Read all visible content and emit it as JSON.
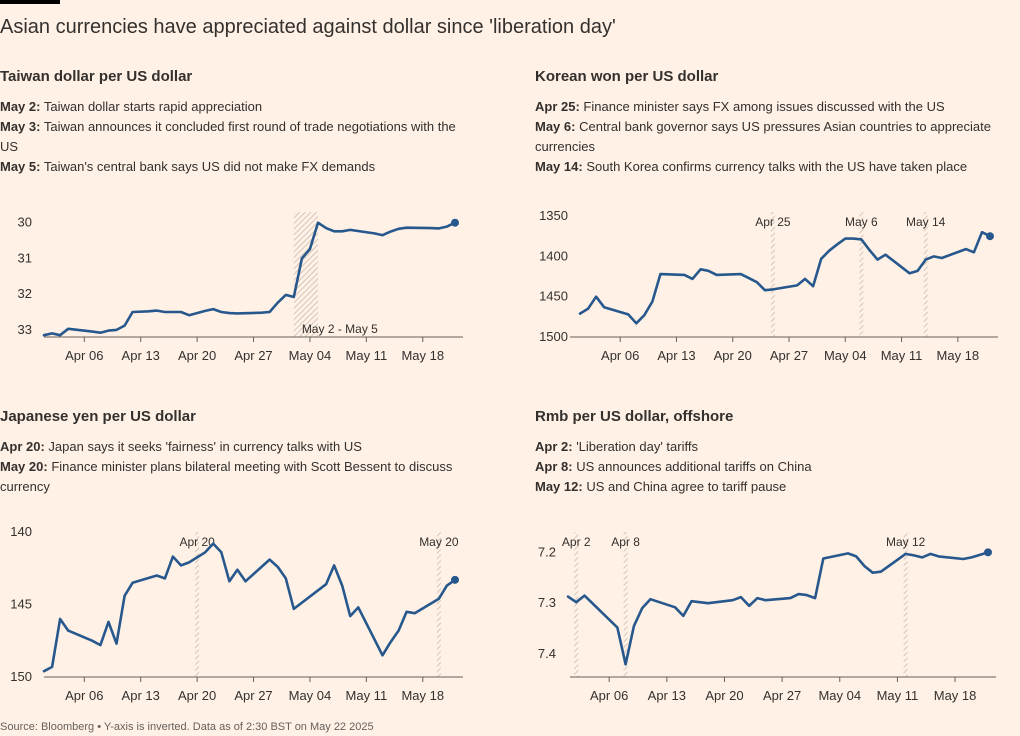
{
  "title": "Asian currencies have appreciated against dollar since 'liberation day'",
  "source": "Source: Bloomberg • Y-axis is inverted. Data as of 2:30 BST on May 22 2025",
  "colors": {
    "line": "#27588d",
    "background": "#fff1e5",
    "text": "#33302e",
    "axis": "#66605c",
    "band": "#c8bcb0"
  },
  "chart_data": [
    {
      "type": "line",
      "title": "Taiwan dollar per US dollar",
      "notes": [
        {
          "date": "May 2:",
          "text": "Taiwan dollar starts rapid appreciation"
        },
        {
          "date": "May 3:",
          "text": "Taiwan announces it concluded first round of trade negotiations with the US"
        },
        {
          "date": "May 5:",
          "text": "Taiwan's central bank says US did not make FX demands"
        }
      ],
      "x_start": "2025-04-01",
      "x_end": "2025-05-22",
      "ylim": [
        33.2,
        29.7
      ],
      "y_inverted": true,
      "yticks": [
        30,
        31,
        32,
        33
      ],
      "xticks": [
        "Apr 06",
        "Apr 13",
        "Apr 20",
        "Apr 27",
        "May 04",
        "May 11",
        "May 18"
      ],
      "xtick_dates": [
        "2025-04-06",
        "2025-04-13",
        "2025-04-20",
        "2025-04-27",
        "2025-05-04",
        "2025-05-11",
        "2025-05-18"
      ],
      "annotations": [
        {
          "label": "May 2 - May 5",
          "start": "2025-05-02",
          "end": "2025-05-05",
          "label_pos": "bottom"
        }
      ],
      "points": [
        [
          "2025-04-01",
          33.15
        ],
        [
          "2025-04-02",
          33.1
        ],
        [
          "2025-04-03",
          33.15
        ],
        [
          "2025-04-04",
          32.97
        ],
        [
          "2025-04-07",
          33.05
        ],
        [
          "2025-04-08",
          33.08
        ],
        [
          "2025-04-09",
          33.02
        ],
        [
          "2025-04-10",
          33.0
        ],
        [
          "2025-04-11",
          32.88
        ],
        [
          "2025-04-12",
          32.5
        ],
        [
          "2025-04-14",
          32.48
        ],
        [
          "2025-04-15",
          32.46
        ],
        [
          "2025-04-16",
          32.5
        ],
        [
          "2025-04-17",
          32.5
        ],
        [
          "2025-04-18",
          32.5
        ],
        [
          "2025-04-19",
          32.59
        ],
        [
          "2025-04-21",
          32.47
        ],
        [
          "2025-04-22",
          32.42
        ],
        [
          "2025-04-23",
          32.5
        ],
        [
          "2025-04-24",
          32.53
        ],
        [
          "2025-04-25",
          32.54
        ],
        [
          "2025-04-28",
          32.52
        ],
        [
          "2025-04-29",
          32.5
        ],
        [
          "2025-04-30",
          32.24
        ],
        [
          "2025-05-01",
          32.02
        ],
        [
          "2025-05-02",
          32.08
        ],
        [
          "2025-05-03",
          31.0
        ],
        [
          "2025-05-04",
          30.74
        ],
        [
          "2025-05-05",
          30.0
        ],
        [
          "2025-05-06",
          30.15
        ],
        [
          "2025-05-07",
          30.24
        ],
        [
          "2025-05-08",
          30.24
        ],
        [
          "2025-05-09",
          30.2
        ],
        [
          "2025-05-12",
          30.3
        ],
        [
          "2025-05-13",
          30.35
        ],
        [
          "2025-05-14",
          30.25
        ],
        [
          "2025-05-15",
          30.17
        ],
        [
          "2025-05-16",
          30.14
        ],
        [
          "2025-05-19",
          30.15
        ],
        [
          "2025-05-20",
          30.16
        ],
        [
          "2025-05-21",
          30.11
        ],
        [
          "2025-05-22",
          30.0
        ]
      ]
    },
    {
      "type": "line",
      "title": "Korean won per US dollar",
      "notes": [
        {
          "date": "Apr 25:",
          "text": "Finance minister says FX among issues discussed with the US"
        },
        {
          "date": "May 6:",
          "text": "Central bank governor says US pressures Asian countries to appreciate currencies"
        },
        {
          "date": "May 14:",
          "text": "South Korea confirms currency talks with the US have taken place"
        }
      ],
      "x_start": "2025-04-01",
      "x_end": "2025-05-22",
      "ylim": [
        1500,
        1345
      ],
      "y_inverted": true,
      "yticks": [
        1350,
        1400,
        1450,
        1500
      ],
      "xticks": [
        "Apr 06",
        "Apr 13",
        "Apr 20",
        "Apr 27",
        "May 04",
        "May 11",
        "May 18"
      ],
      "xtick_dates": [
        "2025-04-06",
        "2025-04-13",
        "2025-04-20",
        "2025-04-27",
        "2025-05-04",
        "2025-05-11",
        "2025-05-18"
      ],
      "annotations": [
        {
          "label": "Apr 25",
          "start": "2025-04-25",
          "end": "2025-04-25",
          "label_pos": "top"
        },
        {
          "label": "May 6",
          "start": "2025-05-06",
          "end": "2025-05-06",
          "label_pos": "top"
        },
        {
          "label": "May 14",
          "start": "2025-05-14",
          "end": "2025-05-14",
          "label_pos": "top"
        }
      ],
      "points": [
        [
          "2025-04-01",
          1471
        ],
        [
          "2025-04-02",
          1465
        ],
        [
          "2025-04-03",
          1450
        ],
        [
          "2025-04-04",
          1463
        ],
        [
          "2025-04-07",
          1472
        ],
        [
          "2025-04-08",
          1483
        ],
        [
          "2025-04-09",
          1473
        ],
        [
          "2025-04-10",
          1456
        ],
        [
          "2025-04-11",
          1422
        ],
        [
          "2025-04-14",
          1423
        ],
        [
          "2025-04-15",
          1428
        ],
        [
          "2025-04-16",
          1416
        ],
        [
          "2025-04-17",
          1418
        ],
        [
          "2025-04-18",
          1423
        ],
        [
          "2025-04-21",
          1422
        ],
        [
          "2025-04-22",
          1427
        ],
        [
          "2025-04-23",
          1432
        ],
        [
          "2025-04-24",
          1442
        ],
        [
          "2025-04-25",
          1441
        ],
        [
          "2025-04-28",
          1436
        ],
        [
          "2025-04-29",
          1428
        ],
        [
          "2025-04-30",
          1437
        ],
        [
          "2025-05-01",
          1403
        ],
        [
          "2025-05-02",
          1393
        ],
        [
          "2025-05-03",
          1385
        ],
        [
          "2025-05-04",
          1378
        ],
        [
          "2025-05-05",
          1378
        ],
        [
          "2025-05-06",
          1379
        ],
        [
          "2025-05-07",
          1392
        ],
        [
          "2025-05-08",
          1404
        ],
        [
          "2025-05-09",
          1398
        ],
        [
          "2025-05-12",
          1421
        ],
        [
          "2025-05-13",
          1418
        ],
        [
          "2025-05-14",
          1404
        ],
        [
          "2025-05-15",
          1400
        ],
        [
          "2025-05-16",
          1402
        ],
        [
          "2025-05-19",
          1391
        ],
        [
          "2025-05-20",
          1395
        ],
        [
          "2025-05-21",
          1370
        ],
        [
          "2025-05-22",
          1375
        ]
      ]
    },
    {
      "type": "line",
      "title": "Japanese yen per US dollar",
      "notes": [
        {
          "date": "Apr 20:",
          "text": "Japan says it seeks 'fairness' in currency talks with US"
        },
        {
          "date": "May 20:",
          "text": "Finance minister plans bilateral meeting with Scott Bessent to discuss currency"
        }
      ],
      "x_start": "2025-04-01",
      "x_end": "2025-05-22",
      "ylim": [
        150,
        140
      ],
      "y_inverted": true,
      "yticks": [
        140,
        145,
        150
      ],
      "xticks": [
        "Apr 06",
        "Apr 13",
        "Apr 20",
        "Apr 27",
        "May 04",
        "May 11",
        "May 18"
      ],
      "xtick_dates": [
        "2025-04-06",
        "2025-04-13",
        "2025-04-20",
        "2025-04-27",
        "2025-05-04",
        "2025-05-11",
        "2025-05-18"
      ],
      "annotations": [
        {
          "label": "Apr 20",
          "start": "2025-04-20",
          "end": "2025-04-20",
          "label_pos": "top"
        },
        {
          "label": "May 20",
          "start": "2025-05-20",
          "end": "2025-05-20",
          "label_pos": "top"
        }
      ],
      "points": [
        [
          "2025-04-01",
          149.6
        ],
        [
          "2025-04-02",
          149.3
        ],
        [
          "2025-04-03",
          146.0
        ],
        [
          "2025-04-04",
          146.8
        ],
        [
          "2025-04-07",
          147.5
        ],
        [
          "2025-04-08",
          147.8
        ],
        [
          "2025-04-09",
          146.2
        ],
        [
          "2025-04-10",
          147.7
        ],
        [
          "2025-04-11",
          144.4
        ],
        [
          "2025-04-12",
          143.5
        ],
        [
          "2025-04-15",
          143.0
        ],
        [
          "2025-04-16",
          143.2
        ],
        [
          "2025-04-17",
          141.7
        ],
        [
          "2025-04-18",
          142.3
        ],
        [
          "2025-04-19",
          142.1
        ],
        [
          "2025-04-21",
          141.4
        ],
        [
          "2025-04-22",
          140.8
        ],
        [
          "2025-04-23",
          141.4
        ],
        [
          "2025-04-24",
          143.4
        ],
        [
          "2025-04-25",
          142.6
        ],
        [
          "2025-04-26",
          143.4
        ],
        [
          "2025-04-29",
          141.9
        ],
        [
          "2025-04-30",
          142.4
        ],
        [
          "2025-05-01",
          143.2
        ],
        [
          "2025-05-02",
          145.3
        ],
        [
          "2025-05-06",
          143.6
        ],
        [
          "2025-05-07",
          142.3
        ],
        [
          "2025-05-08",
          143.7
        ],
        [
          "2025-05-09",
          145.8
        ],
        [
          "2025-05-10",
          145.2
        ],
        [
          "2025-05-13",
          148.5
        ],
        [
          "2025-05-14",
          147.6
        ],
        [
          "2025-05-15",
          146.8
        ],
        [
          "2025-05-16",
          145.5
        ],
        [
          "2025-05-17",
          145.6
        ],
        [
          "2025-05-20",
          144.6
        ],
        [
          "2025-05-21",
          143.7
        ],
        [
          "2025-05-22",
          143.3
        ]
      ]
    },
    {
      "type": "line",
      "title": "Rmb per US dollar, offshore",
      "notes": [
        {
          "date": "Apr 2:",
          "text": "'Liberation day' tariffs"
        },
        {
          "date": "Apr 8:",
          "text": "US announces additional tariffs on China"
        },
        {
          "date": "May 12:",
          "text": "US and China agree to tariff pause"
        }
      ],
      "x_start": "2025-04-01",
      "x_end": "2025-05-22",
      "ylim": [
        7.445,
        7.16
      ],
      "y_inverted": true,
      "yticks": [
        7.2,
        7.3,
        7.4
      ],
      "xticks": [
        "Apr 06",
        "Apr 13",
        "Apr 20",
        "Apr 27",
        "May 04",
        "May 11",
        "May 18"
      ],
      "xtick_dates": [
        "2025-04-06",
        "2025-04-13",
        "2025-04-20",
        "2025-04-27",
        "2025-05-04",
        "2025-05-11",
        "2025-05-18"
      ],
      "annotations": [
        {
          "label": "Apr 2",
          "start": "2025-04-02",
          "end": "2025-04-02",
          "label_pos": "top"
        },
        {
          "label": "Apr 8",
          "start": "2025-04-08",
          "end": "2025-04-08",
          "label_pos": "top"
        },
        {
          "label": "May 12",
          "start": "2025-05-12",
          "end": "2025-05-12",
          "label_pos": "top"
        }
      ],
      "points": [
        [
          "2025-04-01",
          7.287
        ],
        [
          "2025-04-02",
          7.298
        ],
        [
          "2025-04-03",
          7.285
        ],
        [
          "2025-04-07",
          7.348
        ],
        [
          "2025-04-08",
          7.42
        ],
        [
          "2025-04-09",
          7.345
        ],
        [
          "2025-04-10",
          7.31
        ],
        [
          "2025-04-11",
          7.292
        ],
        [
          "2025-04-14",
          7.308
        ],
        [
          "2025-04-15",
          7.325
        ],
        [
          "2025-04-16",
          7.296
        ],
        [
          "2025-04-18",
          7.3
        ],
        [
          "2025-04-21",
          7.294
        ],
        [
          "2025-04-22",
          7.288
        ],
        [
          "2025-04-23",
          7.305
        ],
        [
          "2025-04-24",
          7.29
        ],
        [
          "2025-04-25",
          7.294
        ],
        [
          "2025-04-28",
          7.29
        ],
        [
          "2025-04-29",
          7.282
        ],
        [
          "2025-04-30",
          7.284
        ],
        [
          "2025-05-01",
          7.29
        ],
        [
          "2025-05-02",
          7.212
        ],
        [
          "2025-05-05",
          7.202
        ],
        [
          "2025-05-06",
          7.208
        ],
        [
          "2025-05-07",
          7.227
        ],
        [
          "2025-05-08",
          7.24
        ],
        [
          "2025-05-09",
          7.238
        ],
        [
          "2025-05-12",
          7.203
        ],
        [
          "2025-05-13",
          7.206
        ],
        [
          "2025-05-14",
          7.21
        ],
        [
          "2025-05-15",
          7.203
        ],
        [
          "2025-05-16",
          7.208
        ],
        [
          "2025-05-19",
          7.213
        ],
        [
          "2025-05-20",
          7.21
        ],
        [
          "2025-05-21",
          7.205
        ],
        [
          "2025-05-22",
          7.2
        ]
      ]
    }
  ]
}
